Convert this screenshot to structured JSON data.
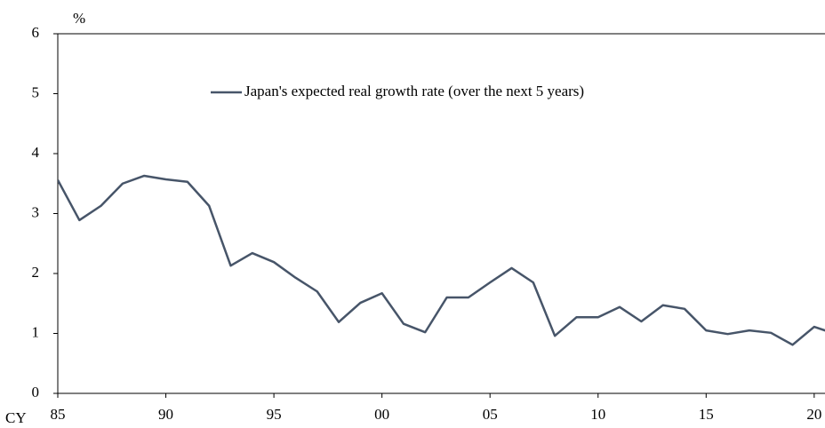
{
  "chart_data": {
    "type": "line",
    "y_unit": "%",
    "x_label": "CY",
    "x": [
      1985,
      1986,
      1987,
      1988,
      1989,
      1990,
      1991,
      1992,
      1993,
      1994,
      1995,
      1996,
      1997,
      1998,
      1999,
      2000,
      2001,
      2002,
      2003,
      2004,
      2005,
      2006,
      2007,
      2008,
      2009,
      2010,
      2011,
      2012,
      2013,
      2014,
      2015,
      2016,
      2017,
      2018,
      2019,
      2020,
      2021
    ],
    "series": [
      {
        "name": "Japan's expected real growth rate (over the next 5 years)",
        "color": "#475569",
        "values": [
          3.56,
          2.89,
          3.13,
          3.5,
          3.63,
          3.57,
          3.53,
          3.13,
          2.13,
          2.34,
          2.19,
          1.93,
          1.7,
          1.19,
          1.51,
          1.67,
          1.16,
          1.02,
          1.6,
          1.6,
          1.85,
          2.09,
          1.85,
          0.96,
          1.27,
          1.27,
          1.44,
          1.2,
          1.47,
          1.41,
          1.05,
          0.99,
          1.05,
          1.01,
          0.81,
          1.11,
          0.99
        ]
      }
    ],
    "xlim": [
      1985,
      2020.5
    ],
    "xticks": [
      {
        "value": 1985,
        "label": "85"
      },
      {
        "value": 1990,
        "label": "90"
      },
      {
        "value": 1995,
        "label": "95"
      },
      {
        "value": 2000,
        "label": "00"
      },
      {
        "value": 2005,
        "label": "05"
      },
      {
        "value": 2010,
        "label": "10"
      },
      {
        "value": 2015,
        "label": "15"
      },
      {
        "value": 2020,
        "label": "20"
      }
    ],
    "ylim": [
      0,
      6
    ],
    "yticks": [
      0,
      1,
      2,
      3,
      4,
      5,
      6
    ]
  }
}
